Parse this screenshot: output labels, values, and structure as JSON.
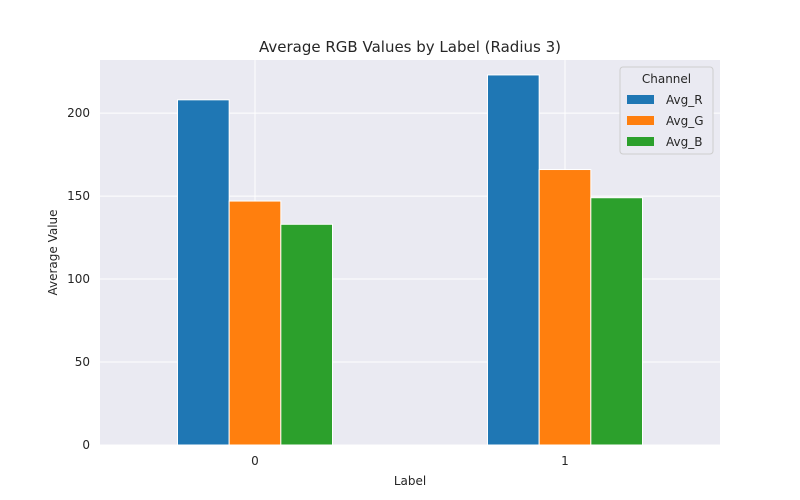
{
  "chart_data": {
    "type": "bar",
    "title": "Average RGB Values by Label (Radius 3)",
    "xlabel": "Label",
    "ylabel": "Average Value",
    "categories": [
      "0",
      "1"
    ],
    "series": [
      {
        "name": "Avg_R",
        "values": [
          208,
          223
        ],
        "color": "#1f77b4"
      },
      {
        "name": "Avg_G",
        "values": [
          147,
          166
        ],
        "color": "#ff7f0e"
      },
      {
        "name": "Avg_B",
        "values": [
          133,
          149
        ],
        "color": "#2ca02c"
      }
    ],
    "ylim": [
      0,
      232
    ],
    "yticks": [
      0,
      50,
      100,
      150,
      200
    ],
    "grid": true,
    "legend": {
      "title": "Channel",
      "placement": "top-right"
    },
    "colors": {
      "plot_background": "#eaeaf2",
      "grid": "#ffffff"
    }
  }
}
